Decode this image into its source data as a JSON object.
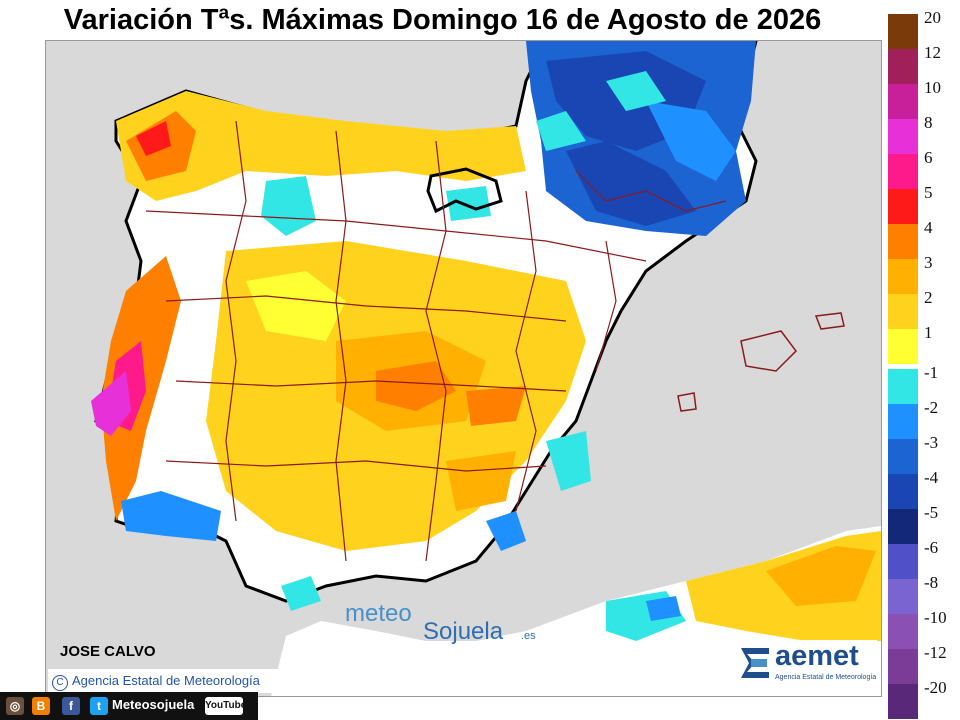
{
  "title": "Variación Tªs. Máximas Domingo 16 de Agosto de 2026",
  "author": "JOSE CALVO",
  "copyright": "Agencia Estatal de Meteorología",
  "watermark": {
    "part1": "meteo",
    "part2": "Sojuela",
    "part3": ".es"
  },
  "aemet": {
    "name": "aemet",
    "subtitle": "Agencia Estatal de Meteorología"
  },
  "social": {
    "handle": "Meteosojuela",
    "youtube": "YouTube",
    "icons": [
      "instagram-icon",
      "blogger-icon",
      "facebook-icon",
      "twitter-icon",
      "youtube-icon"
    ]
  },
  "legend": {
    "positive": [
      {
        "label": "20",
        "color": "#7a3a0a"
      },
      {
        "label": "12",
        "color": "#a0205a"
      },
      {
        "label": "10",
        "color": "#c8209a"
      },
      {
        "label": "8",
        "color": "#e830d8"
      },
      {
        "label": "6",
        "color": "#ff1a8c"
      },
      {
        "label": "5",
        "color": "#ff1a1a"
      },
      {
        "label": "4",
        "color": "#ff8000"
      },
      {
        "label": "3",
        "color": "#ffb000"
      },
      {
        "label": "2",
        "color": "#ffd21e"
      },
      {
        "label": "1",
        "color": "#ffff33"
      }
    ],
    "negative": [
      {
        "label": "-1",
        "color": "#33e6e6"
      },
      {
        "label": "-2",
        "color": "#1e90ff"
      },
      {
        "label": "-3",
        "color": "#1c64d2"
      },
      {
        "label": "-4",
        "color": "#1a46b4"
      },
      {
        "label": "-5",
        "color": "#14287a"
      },
      {
        "label": "-6",
        "color": "#5050c8"
      },
      {
        "label": "-8",
        "color": "#7a64d2"
      },
      {
        "label": "-10",
        "color": "#8a50b4"
      },
      {
        "label": "-12",
        "color": "#7a3c96"
      },
      {
        "label": "-20",
        "color": "#5a2878"
      }
    ]
  }
}
